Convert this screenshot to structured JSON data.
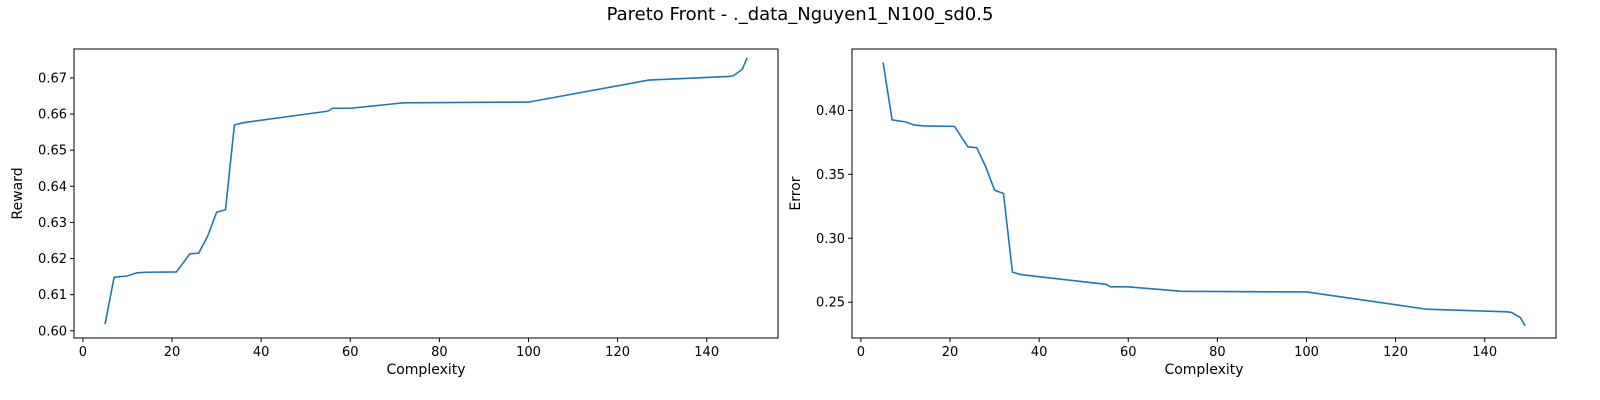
{
  "title": "Pareto Front - ._data_Nguyen1_N100_sd0.5",
  "chart_data": [
    {
      "type": "line",
      "xlabel": "Complexity",
      "ylabel": "Reward",
      "xlim": [
        -2,
        156
      ],
      "ylim": [
        0.598,
        0.678
      ],
      "xticks": [
        0,
        20,
        40,
        60,
        80,
        100,
        120,
        140
      ],
      "yticks": [
        0.6,
        0.61,
        0.62,
        0.63,
        0.64,
        0.65,
        0.66,
        0.67
      ],
      "ytick_decimals": 2,
      "line_color": "#1f77b4",
      "grid": false,
      "series": [
        {
          "x": [
            5,
            7,
            10,
            12,
            14,
            21,
            24,
            26,
            28,
            30,
            32,
            34,
            36,
            55,
            56,
            60,
            72,
            100,
            127,
            145,
            146,
            148,
            149
          ],
          "y": [
            0.602,
            0.6148,
            0.6152,
            0.616,
            0.6162,
            0.6163,
            0.6213,
            0.6215,
            0.6262,
            0.6328,
            0.6335,
            0.657,
            0.6576,
            0.6608,
            0.6616,
            0.6616,
            0.6631,
            0.6633,
            0.6694,
            0.6704,
            0.6706,
            0.6724,
            0.6754
          ]
        }
      ]
    },
    {
      "type": "line",
      "xlabel": "Complexity",
      "ylabel": "Error",
      "xlim": [
        -2,
        156
      ],
      "ylim": [
        0.222,
        0.448
      ],
      "xticks": [
        0,
        20,
        40,
        60,
        80,
        100,
        120,
        140
      ],
      "yticks": [
        0.25,
        0.3,
        0.35,
        0.4
      ],
      "ytick_decimals": 2,
      "line_color": "#1f77b4",
      "grid": false,
      "series": [
        {
          "x": [
            5,
            7,
            10,
            12,
            14,
            21,
            24,
            26,
            28,
            30,
            32,
            34,
            36,
            55,
            56,
            60,
            72,
            100,
            127,
            145,
            146,
            148,
            149
          ],
          "y": [
            0.437,
            0.3925,
            0.391,
            0.3885,
            0.3878,
            0.3875,
            0.3715,
            0.3708,
            0.356,
            0.3375,
            0.335,
            0.2735,
            0.2715,
            0.264,
            0.262,
            0.262,
            0.2585,
            0.258,
            0.2445,
            0.2425,
            0.242,
            0.238,
            0.232
          ]
        }
      ]
    }
  ]
}
